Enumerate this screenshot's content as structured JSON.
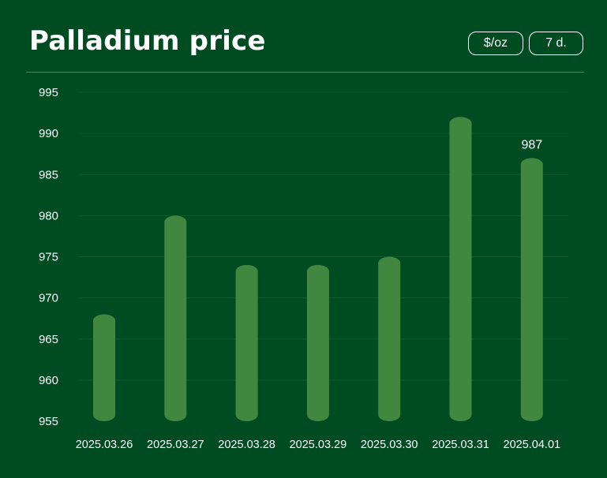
{
  "header": {
    "title": "Palladium price",
    "unit_label": "$/oz",
    "range_label": "7 d."
  },
  "colors": {
    "background": "#004c22",
    "bar": "#42873f",
    "gridline": "#0b5a2c",
    "divider": "#3f8a4e",
    "text": "#ffffff"
  },
  "chart_data": {
    "type": "bar",
    "title": "Palladium price",
    "xlabel": "",
    "ylabel": "",
    "categories": [
      "2025.03.26",
      "2025.03.27",
      "2025.03.28",
      "2025.03.29",
      "2025.03.30",
      "2025.03.31",
      "2025.04.01"
    ],
    "values": [
      968,
      980,
      974,
      974,
      975,
      992,
      987
    ],
    "ylim": [
      955,
      995
    ],
    "yticks": [
      955,
      960,
      965,
      970,
      975,
      980,
      985,
      990,
      995
    ],
    "data_labels": [
      {
        "category": "2025.04.01",
        "text": "987"
      }
    ],
    "grid": true,
    "legend": "none"
  }
}
